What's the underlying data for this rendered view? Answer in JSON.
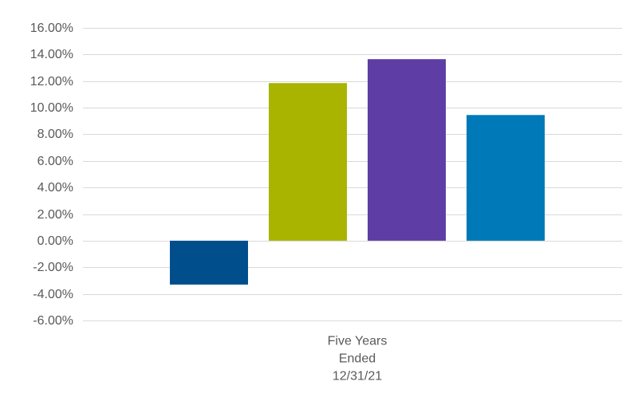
{
  "chart_data": {
    "type": "bar",
    "categories": [
      "Five Years Ended 12/31/21"
    ],
    "category_label_lines": [
      "Five Years",
      "Ended",
      "12/31/21"
    ],
    "series": [
      {
        "values": [
          -3.3
        ],
        "color": "#004f8c"
      },
      {
        "values": [
          11.85
        ],
        "color": "#a8b400"
      },
      {
        "values": [
          13.65
        ],
        "color": "#5e3ea4"
      },
      {
        "values": [
          9.45
        ],
        "color": "#0079b8"
      }
    ],
    "ylim": [
      -6,
      16
    ],
    "y_ticks": [
      {
        "value": 16,
        "label": "16.00%"
      },
      {
        "value": 14,
        "label": "14.00%"
      },
      {
        "value": 12,
        "label": "12.00%"
      },
      {
        "value": 10,
        "label": "10.00%"
      },
      {
        "value": 8,
        "label": "8.00%"
      },
      {
        "value": 6,
        "label": "6.00%"
      },
      {
        "value": 4,
        "label": "4.00%"
      },
      {
        "value": 2,
        "label": "2.00%"
      },
      {
        "value": 0,
        "label": "0.00%"
      },
      {
        "value": -2,
        "label": "-2.00%"
      },
      {
        "value": -4,
        "label": "-4.00%"
      },
      {
        "value": -6,
        "label": "-6.00%"
      }
    ],
    "grid": true,
    "legend": "none",
    "title": "",
    "xlabel": "",
    "ylabel": ""
  }
}
